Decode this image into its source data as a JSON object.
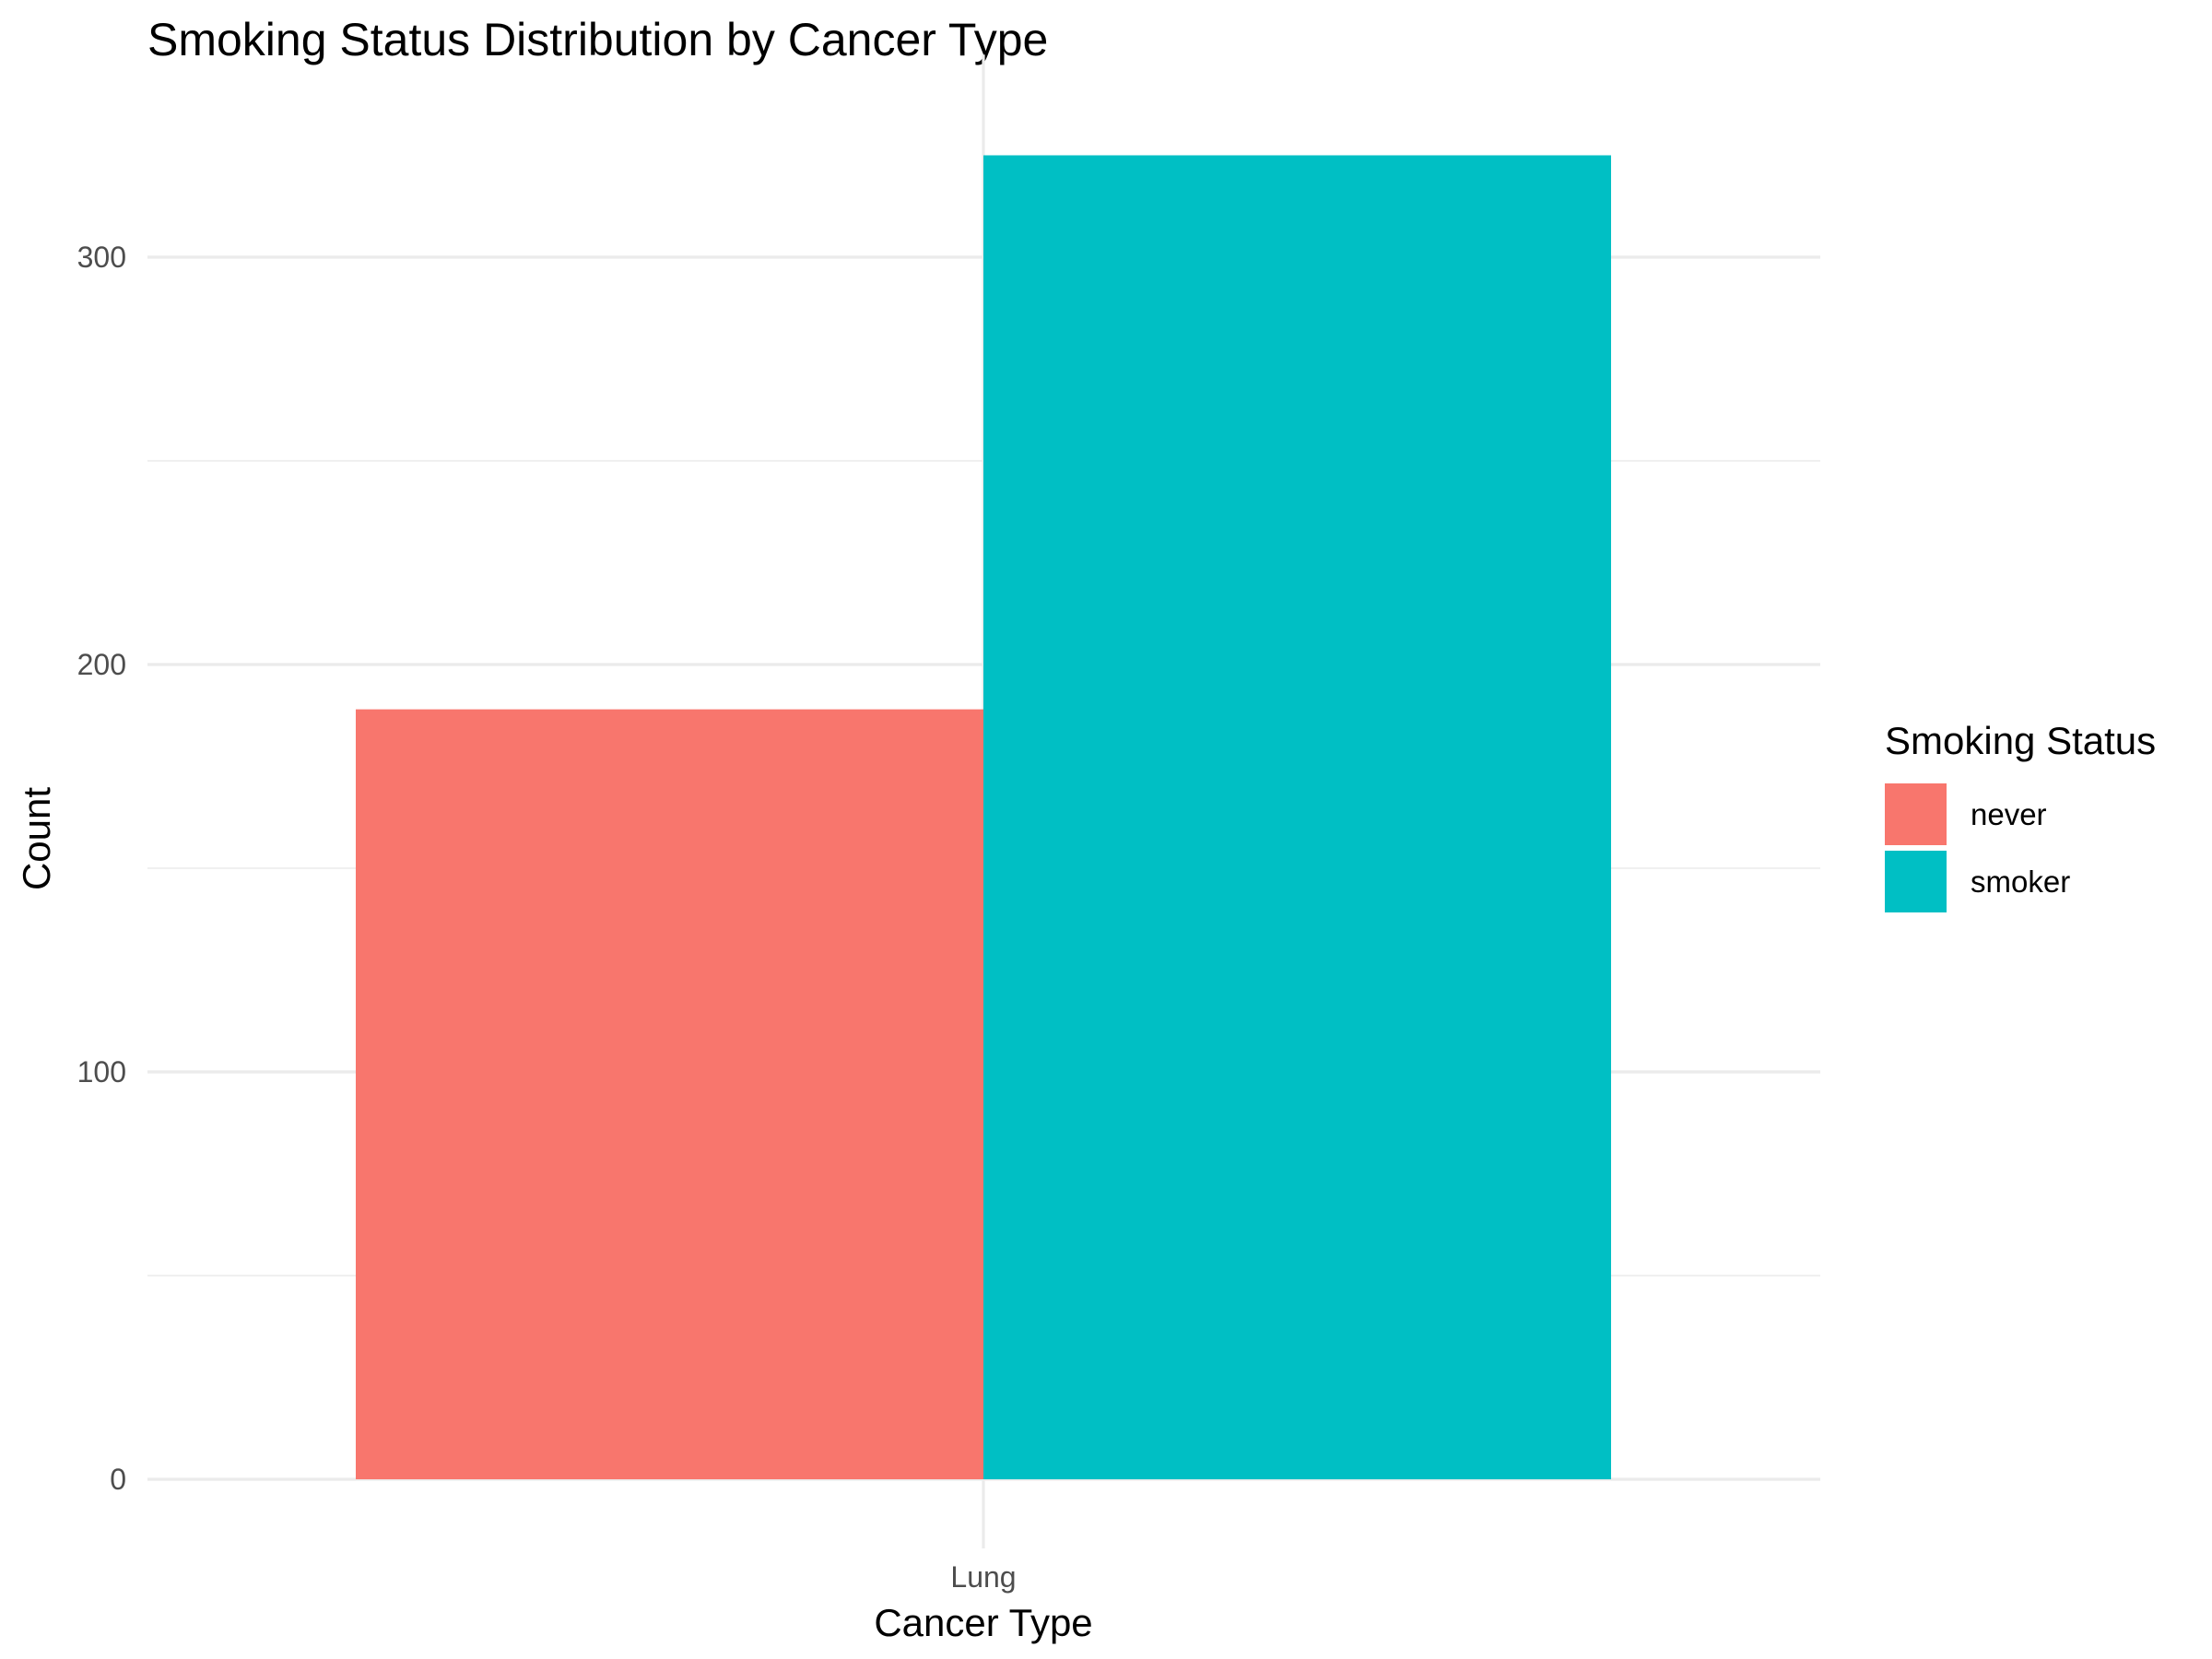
{
  "chart_data": {
    "type": "bar",
    "title": "Smoking Status Distribution by Cancer Type",
    "xlabel": "Cancer Type",
    "ylabel": "Count",
    "categories": [
      "Lung"
    ],
    "series": [
      {
        "name": "never",
        "values": [
          189
        ],
        "color": "#F8766D"
      },
      {
        "name": "smoker",
        "values": [
          325
        ],
        "color": "#00BFC4"
      }
    ],
    "ylim": [
      0,
      335
    ],
    "yticks": [
      0,
      100,
      200,
      300
    ],
    "grid": true,
    "legend": {
      "title": "Smoking Status",
      "placement": "right"
    }
  }
}
